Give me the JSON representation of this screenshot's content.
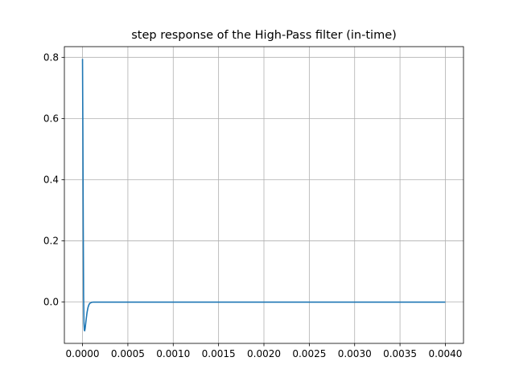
{
  "chart_data": {
    "type": "line",
    "title": "step response of the High-Pass filter (in-time)",
    "xlabel": "",
    "ylabel": "",
    "xlim": [
      -0.0002,
      0.0042
    ],
    "ylim": [
      -0.135,
      0.835
    ],
    "grid": true,
    "x_ticks": [
      0.0,
      0.0005,
      0.001,
      0.0015,
      0.002,
      0.0025,
      0.003,
      0.0035,
      0.004
    ],
    "x_tick_labels": [
      "0.0000",
      "0.0005",
      "0.0010",
      "0.0015",
      "0.0020",
      "0.0025",
      "0.0030",
      "0.0035",
      "0.0040"
    ],
    "y_ticks": [
      0.0,
      0.2,
      0.4,
      0.6,
      0.8
    ],
    "y_tick_labels": [
      "0.0",
      "0.2",
      "0.4",
      "0.6",
      "0.8"
    ],
    "series": [
      {
        "color": "#1f77b4",
        "x": [
          0.0,
          4e-06,
          8e-06,
          1.2e-05,
          1.6e-05,
          2e-05,
          2.4e-05,
          2.8e-05,
          3.2e-05,
          4e-05,
          5e-05,
          6e-05,
          7e-05,
          8e-05,
          0.0001,
          0.00012,
          0.00015,
          0.0002,
          0.0005,
          0.001,
          0.002,
          0.003,
          0.004
        ],
        "y": [
          0.795,
          0.55,
          0.25,
          0.02,
          -0.07,
          -0.092,
          -0.094,
          -0.088,
          -0.078,
          -0.057,
          -0.034,
          -0.018,
          -0.009,
          -0.004,
          -0.001,
          0.0,
          0.0,
          0.0,
          0.0,
          0.0,
          0.0,
          0.0,
          0.0
        ]
      }
    ]
  }
}
